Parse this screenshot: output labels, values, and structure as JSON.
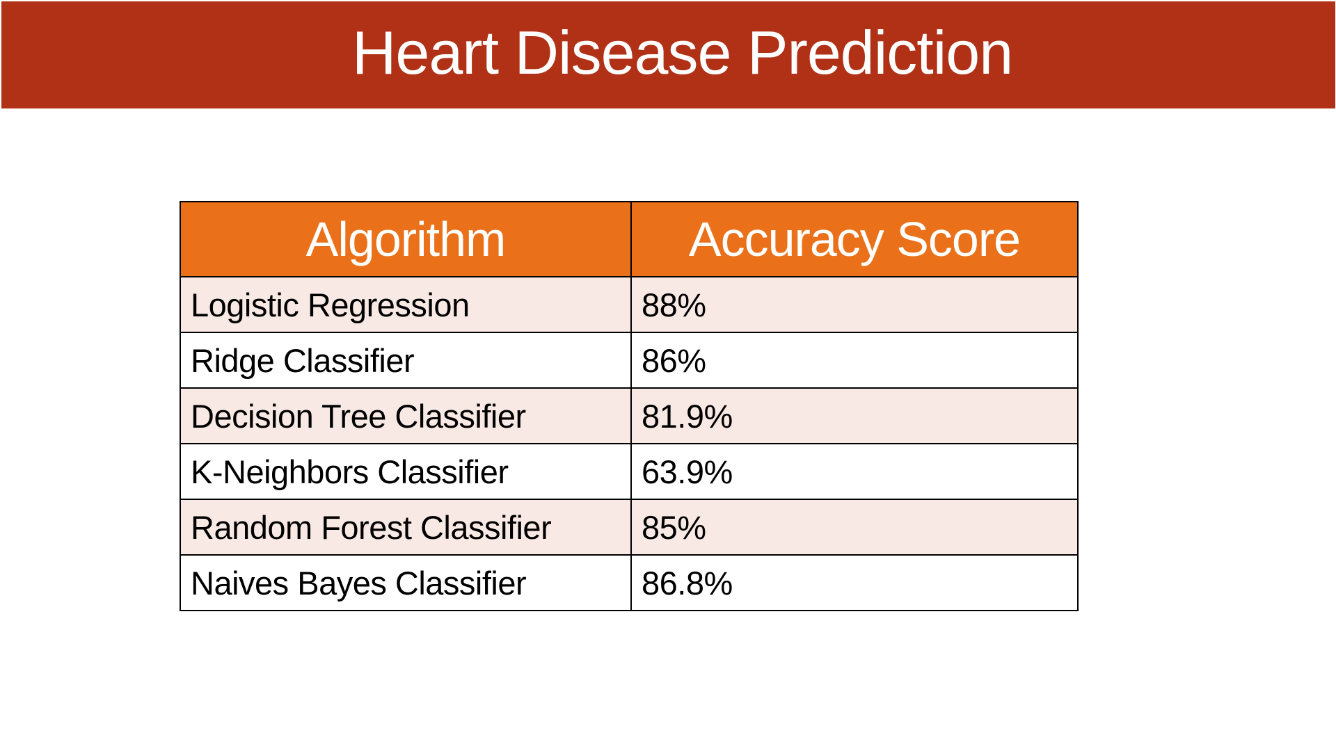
{
  "title": "Heart Disease Prediction",
  "colors": {
    "banner": "#b03115",
    "header": "#ea7119",
    "row_alt": "#f9e9e5",
    "row_plain": "#ffffff"
  },
  "table": {
    "headers": [
      "Algorithm",
      "Accuracy Score"
    ],
    "rows": [
      [
        "Logistic Regression",
        "88%"
      ],
      [
        "Ridge Classifier",
        "86%"
      ],
      [
        "Decision Tree Classifier",
        "81.9%"
      ],
      [
        "K-Neighbors Classifier",
        "63.9%"
      ],
      [
        "Random Forest Classifier",
        "85%"
      ],
      [
        "Naives Bayes Classifier",
        "86.8%"
      ]
    ]
  }
}
